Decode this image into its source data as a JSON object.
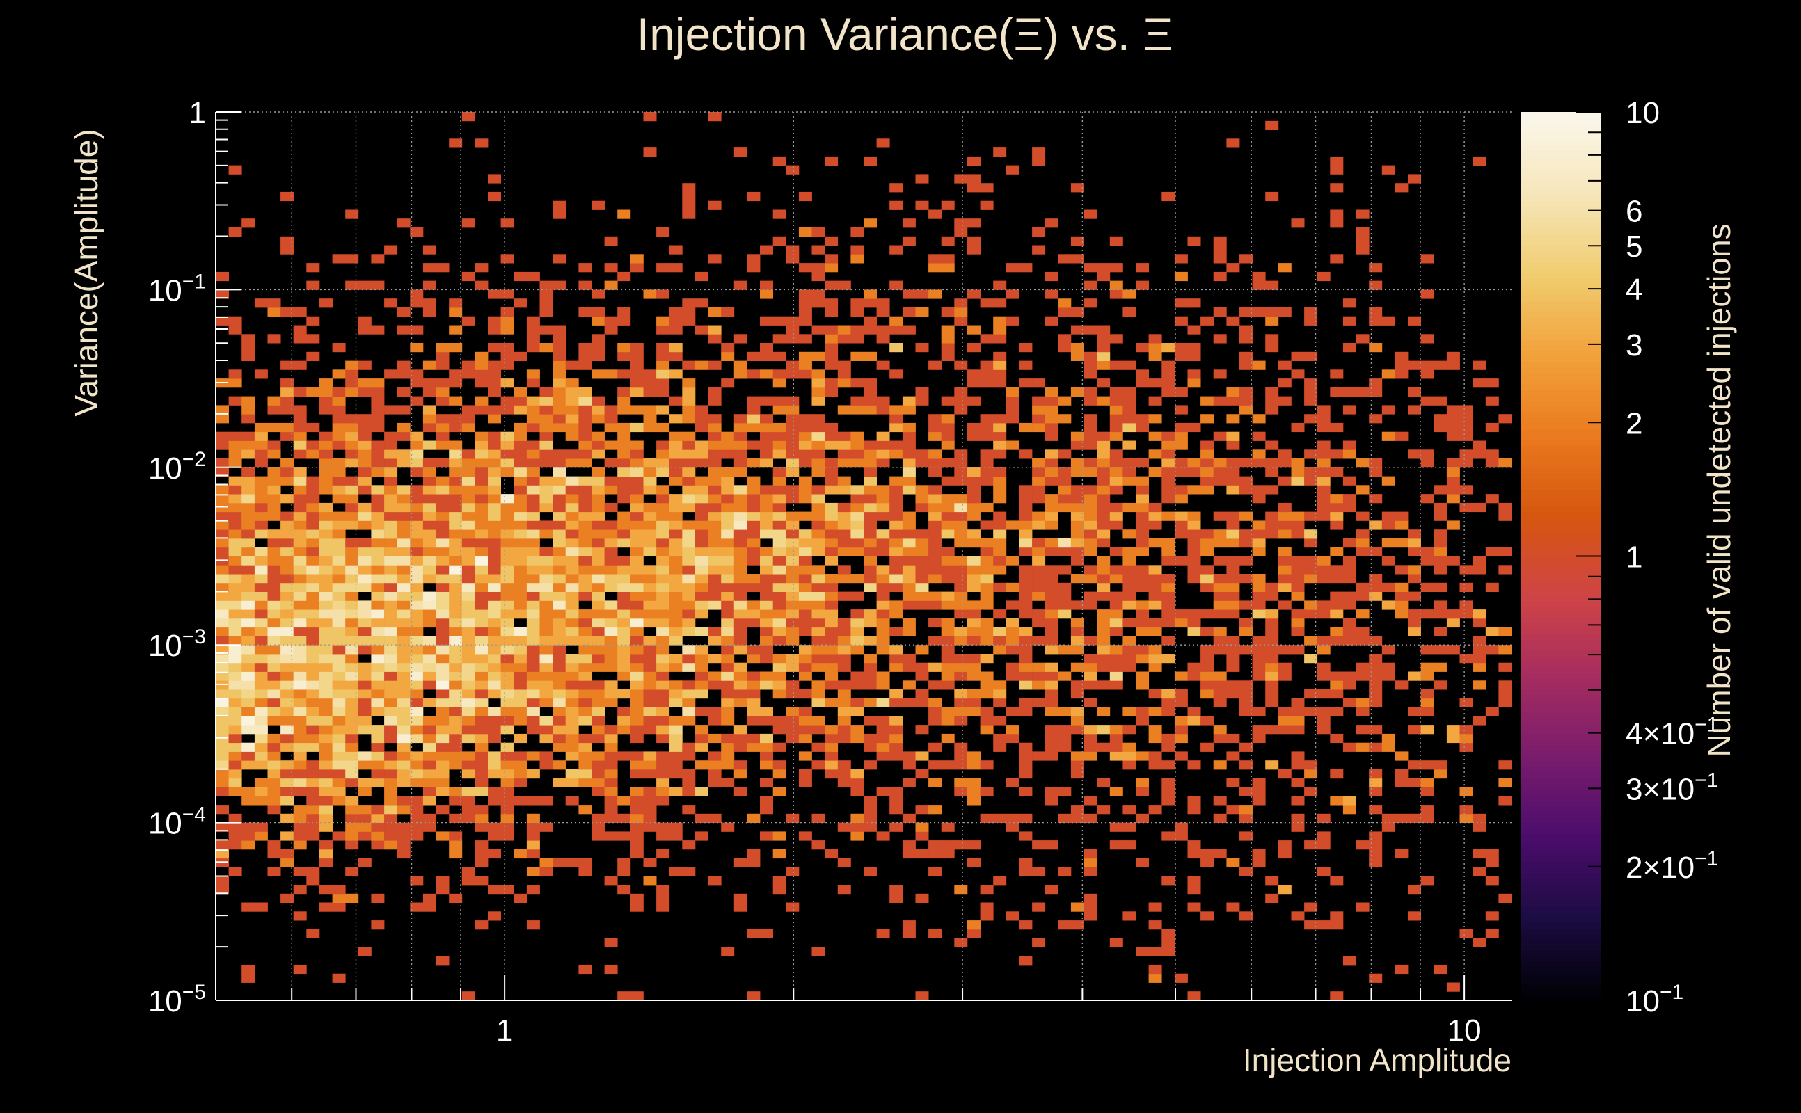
{
  "chart_data": {
    "type": "heatmap",
    "title": "Injection Variance(Ξ) vs. Ξ",
    "xlabel": "Injection Amplitude",
    "ylabel": "Variance(Amplitude)",
    "zlabel": "Number of valid undetected injections",
    "x_scale": "log",
    "y_scale": "log",
    "z_scale": "log",
    "xlim": [
      0.5,
      11.2
    ],
    "ylim": [
      1e-05,
      1
    ],
    "zlim": [
      0.1,
      10
    ],
    "x_ticks": [
      {
        "value": 1,
        "label": "1"
      },
      {
        "value": 10,
        "label": "10"
      }
    ],
    "y_ticks": [
      {
        "value": 1,
        "base": "1",
        "exp": ""
      },
      {
        "value": 0.1,
        "base": "10",
        "exp": "−1"
      },
      {
        "value": 0.01,
        "base": "10",
        "exp": "−2"
      },
      {
        "value": 0.001,
        "base": "10",
        "exp": "−3"
      },
      {
        "value": 0.0001,
        "base": "10",
        "exp": "−4"
      },
      {
        "value": 1e-05,
        "base": "10",
        "exp": "−5"
      }
    ],
    "z_ticks": [
      {
        "value": 10,
        "base": "10",
        "exp": ""
      },
      {
        "value": 6,
        "base": "6",
        "exp": ""
      },
      {
        "value": 5,
        "base": "5",
        "exp": ""
      },
      {
        "value": 4,
        "base": "4",
        "exp": ""
      },
      {
        "value": 3,
        "base": "3",
        "exp": ""
      },
      {
        "value": 2,
        "base": "2",
        "exp": ""
      },
      {
        "value": 1,
        "base": "1",
        "exp": ""
      },
      {
        "value": 0.4,
        "base": "4×10",
        "exp": "−1"
      },
      {
        "value": 0.3,
        "base": "3×10",
        "exp": "−1"
      },
      {
        "value": 0.2,
        "base": "2×10",
        "exp": "−1"
      },
      {
        "value": 0.1,
        "base": "10",
        "exp": "−1"
      }
    ],
    "bins": {
      "nx": 100,
      "ny": 100
    },
    "density_model": [
      {
        "x_center": 0.56,
        "y_center": 0.0007,
        "x_sigma_log": 0.22,
        "y_sigma_log": 0.55,
        "weight": 3.2
      },
      {
        "x_center": 1.0,
        "y_center": 0.003,
        "x_sigma_log": 0.28,
        "y_sigma_log": 0.62,
        "weight": 1.7
      },
      {
        "x_center": 2.4,
        "y_center": 0.004,
        "x_sigma_log": 0.4,
        "y_sigma_log": 0.9,
        "weight": 0.9
      },
      {
        "x_center": 6.0,
        "y_center": 0.001,
        "x_sigma_log": 0.35,
        "y_sigma_log": 1.0,
        "weight": 0.35
      }
    ],
    "colormap": [
      "#000004",
      "#1b0c41",
      "#4a0c6b",
      "#781c6d",
      "#a52c60",
      "#cf4446",
      "#d6560f",
      "#ea7a1f",
      "#f2a23a",
      "#f0cd70",
      "#f6e6bb",
      "#fbf7ec"
    ]
  }
}
